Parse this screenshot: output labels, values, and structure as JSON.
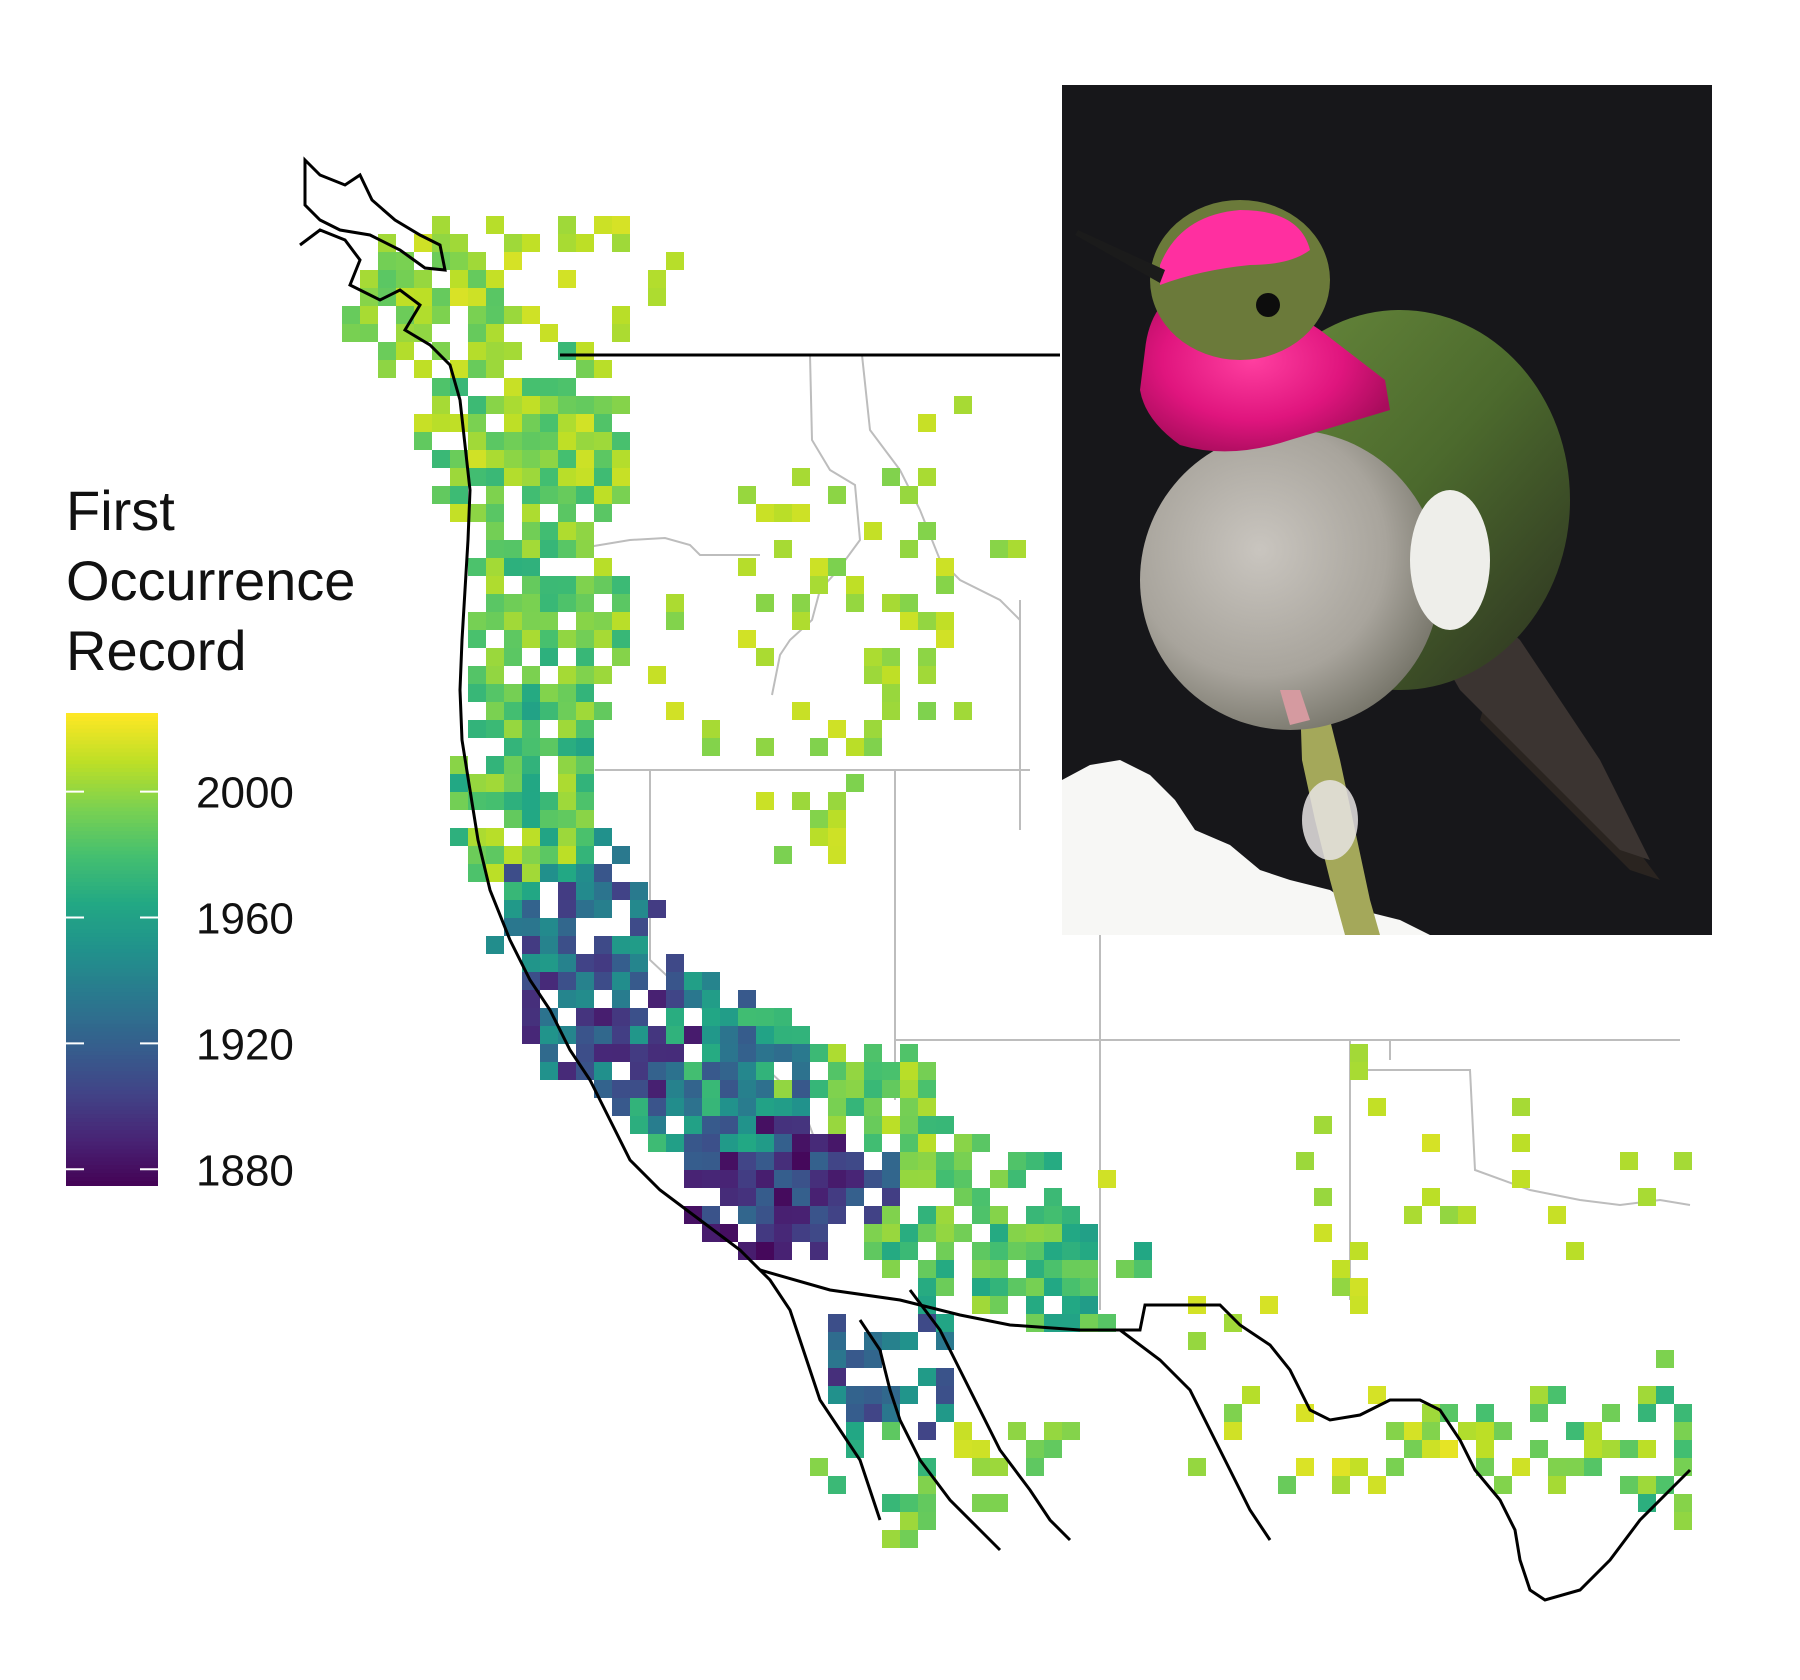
{
  "legend": {
    "title_lines": [
      "First",
      "Occurrence",
      "Record"
    ],
    "ticks": [
      2000,
      1960,
      1920,
      1880
    ],
    "range": [
      1875,
      2025
    ],
    "palette": "viridis"
  },
  "photo": {
    "subject": "hummingbird",
    "colors": {
      "background": "#17171a",
      "gorget": "#e0157e",
      "body": "#5e7a3a",
      "chest": "#b7b3ad"
    }
  },
  "colors": {
    "border_us_canada": "#000000",
    "coastline": "#000000",
    "state_lines": "#bdbdbd",
    "viridis_dark": "#440154",
    "viridis_mid": "#21918c",
    "viridis_light": "#fde725"
  },
  "map_data": {
    "grid": {
      "cols": 78,
      "rows": 66
    },
    "first_occurrence_bands": [
      {
        "band": "northwest-coast",
        "year": 2005
      },
      {
        "band": "washington-puget",
        "year": 1990
      },
      {
        "band": "oregon-coast",
        "year": 1975
      },
      {
        "band": "california-coast",
        "year": 1900
      },
      {
        "band": "california-interior",
        "year": 1960
      },
      {
        "band": "southern-california",
        "year": 1905
      },
      {
        "band": "arizona",
        "year": 1985
      },
      {
        "band": "baja",
        "year": 1960
      },
      {
        "band": "texas-mexico",
        "year": 2005
      }
    ]
  }
}
